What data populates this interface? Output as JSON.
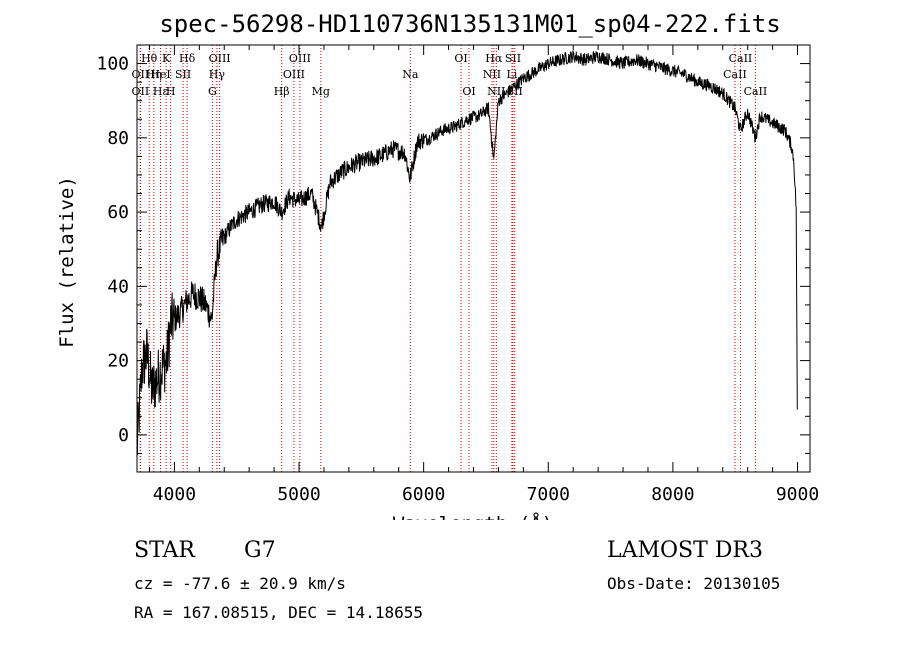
{
  "chart_data": {
    "type": "line",
    "title": "spec-56298-HD110736N135131M01_sp04-222.fits",
    "xlabel": "Wavelength (Å)",
    "ylabel": "Flux (relative)",
    "xlim": [
      3700,
      9100
    ],
    "ylim": [
      -10,
      105
    ],
    "xticks": [
      4000,
      5000,
      6000,
      7000,
      8000,
      9000
    ],
    "yticks": [
      0,
      20,
      40,
      60,
      80,
      100
    ],
    "grid": false,
    "series": [
      {
        "name": "flux",
        "x": [
          3700,
          3740,
          3780,
          3820,
          3860,
          3900,
          3940,
          3970,
          4000,
          4050,
          4100,
          4150,
          4200,
          4250,
          4300,
          4340,
          4380,
          4450,
          4500,
          4600,
          4700,
          4800,
          4860,
          4920,
          5000,
          5100,
          5180,
          5250,
          5350,
          5450,
          5550,
          5650,
          5750,
          5850,
          5890,
          5950,
          6050,
          6150,
          6250,
          6350,
          6450,
          6520,
          6563,
          6600,
          6700,
          6800,
          6900,
          7000,
          7100,
          7200,
          7300,
          7400,
          7500,
          7600,
          7700,
          7800,
          7900,
          8000,
          8100,
          8200,
          8300,
          8400,
          8498,
          8542,
          8600,
          8662,
          8700,
          8800,
          8900,
          8950,
          8970,
          8990,
          9000
        ],
        "y": [
          -4,
          18,
          22,
          12,
          15,
          18,
          20,
          30,
          31,
          33,
          36,
          38,
          37,
          35,
          31,
          48,
          52,
          56,
          58,
          60,
          62,
          63,
          60,
          64,
          63,
          65,
          56,
          68,
          71,
          73,
          74,
          75,
          77,
          76,
          69,
          79,
          80,
          82,
          83,
          85,
          86,
          88,
          74,
          90,
          93,
          96,
          98,
          100,
          101,
          102,
          101,
          102,
          101,
          100,
          101,
          100,
          99,
          98,
          97,
          95,
          94,
          92,
          88,
          82,
          87,
          80,
          86,
          84,
          82,
          78,
          74,
          60,
          -8
        ]
      }
    ],
    "line_markers": [
      {
        "label": "Hθ",
        "x": 3798,
        "row": 1
      },
      {
        "label": "OII",
        "x": 3727,
        "row": 2
      },
      {
        "label": "OII",
        "x": 3727,
        "row": 3
      },
      {
        "label": "Hη",
        "x": 3835,
        "row": 2
      },
      {
        "label": "Hε",
        "x": 3889,
        "row": 3
      },
      {
        "label": "K",
        "x": 3934,
        "row": 1
      },
      {
        "label": "HeI",
        "x": 3889,
        "row": 2
      },
      {
        "label": "H",
        "x": 3970,
        "row": 3
      },
      {
        "label": "SII",
        "x": 4070,
        "row": 2
      },
      {
        "label": "Hδ",
        "x": 4102,
        "row": 1
      },
      {
        "label": "OIII",
        "x": 4363,
        "row": 1
      },
      {
        "label": "Hγ",
        "x": 4341,
        "row": 2
      },
      {
        "label": "G",
        "x": 4305,
        "row": 3
      },
      {
        "label": "Hβ",
        "x": 4861,
        "row": 3
      },
      {
        "label": "OIII",
        "x": 5007,
        "row": 1
      },
      {
        "label": "OIII",
        "x": 4959,
        "row": 2
      },
      {
        "label": "Mg",
        "x": 5175,
        "row": 3
      },
      {
        "label": "Na",
        "x": 5893,
        "row": 2
      },
      {
        "label": "OI",
        "x": 6300,
        "row": 1
      },
      {
        "label": "OI",
        "x": 6364,
        "row": 3
      },
      {
        "label": "Hα",
        "x": 6563,
        "row": 1
      },
      {
        "label": "NII",
        "x": 6548,
        "row": 2
      },
      {
        "label": "NII",
        "x": 6583,
        "row": 3
      },
      {
        "label": "SII",
        "x": 6717,
        "row": 1
      },
      {
        "label": "Li",
        "x": 6708,
        "row": 2
      },
      {
        "label": "SII",
        "x": 6731,
        "row": 3
      },
      {
        "label": "CaII",
        "x": 8542,
        "row": 1
      },
      {
        "label": "CaII",
        "x": 8498,
        "row": 2
      },
      {
        "label": "CaII",
        "x": 8662,
        "row": 3
      }
    ]
  },
  "info": {
    "class_label": "STAR",
    "subclass": "G7",
    "survey": "LAMOST DR3",
    "cz": "cz = -77.6 ± 20.9 km/s",
    "obs_date": "Obs-Date: 20130105",
    "coords": "RA = 167.08515, DEC =  14.18655"
  }
}
